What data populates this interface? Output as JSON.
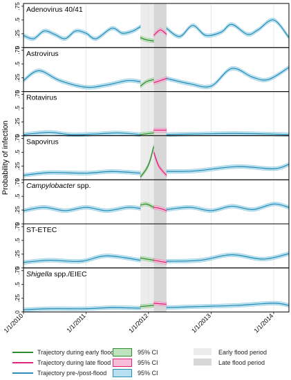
{
  "chart_data": {
    "type": "line",
    "ylabel": "Probability of infection",
    "x_ticks": [
      "1/1/2010",
      "1/1/2011",
      "1/1/2012",
      "1/1/2013",
      "1/1/2014"
    ],
    "y_ticks": [
      "0",
      ".25",
      ".5",
      ".75"
    ],
    "ylim": [
      0,
      0.8
    ],
    "xlim": [
      "2010-01-01",
      "2014-03-31"
    ],
    "grid": true,
    "legend_position": "bottom",
    "periods": {
      "early_flood": [
        "2011-11-15",
        "2012-01-31"
      ],
      "late_flood": [
        "2012-02-01",
        "2012-04-15"
      ]
    },
    "panels": [
      {
        "title": "Adenovirus 40/41",
        "pre_post": [
          {
            "x": "2010-01-01",
            "y": 0.22
          },
          {
            "x": "2010-03-01",
            "y": 0.16
          },
          {
            "x": "2010-05-01",
            "y": 0.3
          },
          {
            "x": "2010-07-01",
            "y": 0.24
          },
          {
            "x": "2010-09-01",
            "y": 0.16
          },
          {
            "x": "2010-11-01",
            "y": 0.3
          },
          {
            "x": "2011-01-01",
            "y": 0.26
          },
          {
            "x": "2011-03-01",
            "y": 0.16
          },
          {
            "x": "2011-06-01",
            "y": 0.35
          },
          {
            "x": "2011-08-01",
            "y": 0.26
          },
          {
            "x": "2011-10-01",
            "y": 0.3
          },
          {
            "x": "2011-11-15",
            "y": 0.38
          },
          {
            "x": "2012-04-15",
            "y": 0.35
          },
          {
            "x": "2012-07-01",
            "y": 0.2
          },
          {
            "x": "2012-09-15",
            "y": 0.4
          },
          {
            "x": "2012-12-01",
            "y": 0.22
          },
          {
            "x": "2013-03-01",
            "y": 0.28
          },
          {
            "x": "2013-05-01",
            "y": 0.42
          },
          {
            "x": "2013-08-01",
            "y": 0.24
          },
          {
            "x": "2013-10-01",
            "y": 0.32
          },
          {
            "x": "2014-01-01",
            "y": 0.5
          },
          {
            "x": "2014-03-31",
            "y": 0.18
          }
        ],
        "early": [
          {
            "x": "2011-11-15",
            "y": 0.18
          },
          {
            "x": "2011-12-20",
            "y": 0.14
          },
          {
            "x": "2012-01-31",
            "y": 0.12
          }
        ],
        "late": [
          {
            "x": "2012-02-01",
            "y": 0.22
          },
          {
            "x": "2012-03-10",
            "y": 0.32
          },
          {
            "x": "2012-04-15",
            "y": 0.24
          }
        ]
      },
      {
        "title": "Astrovirus",
        "pre_post": [
          {
            "x": "2010-01-01",
            "y": 0.2
          },
          {
            "x": "2010-04-01",
            "y": 0.38
          },
          {
            "x": "2010-08-01",
            "y": 0.2
          },
          {
            "x": "2011-01-01",
            "y": 0.08
          },
          {
            "x": "2011-05-01",
            "y": 0.12
          },
          {
            "x": "2011-09-01",
            "y": 0.2
          },
          {
            "x": "2011-11-15",
            "y": 0.18
          },
          {
            "x": "2012-04-15",
            "y": 0.24
          },
          {
            "x": "2012-09-01",
            "y": 0.14
          },
          {
            "x": "2013-01-01",
            "y": 0.1
          },
          {
            "x": "2013-05-01",
            "y": 0.42
          },
          {
            "x": "2013-09-01",
            "y": 0.26
          },
          {
            "x": "2013-12-01",
            "y": 0.22
          },
          {
            "x": "2014-03-31",
            "y": 0.44
          }
        ],
        "early": [
          {
            "x": "2011-11-15",
            "y": 0.1
          },
          {
            "x": "2011-12-20",
            "y": 0.18
          },
          {
            "x": "2012-01-31",
            "y": 0.22
          }
        ],
        "late": [
          {
            "x": "2012-02-01",
            "y": 0.16
          },
          {
            "x": "2012-03-10",
            "y": 0.2
          },
          {
            "x": "2012-04-15",
            "y": 0.24
          }
        ]
      },
      {
        "title": "Rotavirus",
        "pre_post": [
          {
            "x": "2010-01-01",
            "y": 0.02
          },
          {
            "x": "2010-06-01",
            "y": 0.06
          },
          {
            "x": "2010-10-01",
            "y": 0.02
          },
          {
            "x": "2011-03-01",
            "y": 0.03
          },
          {
            "x": "2011-07-01",
            "y": 0.05
          },
          {
            "x": "2011-11-15",
            "y": 0.02
          },
          {
            "x": "2012-04-15",
            "y": 0.02
          },
          {
            "x": "2012-10-01",
            "y": 0.03
          },
          {
            "x": "2013-06-01",
            "y": 0.04
          },
          {
            "x": "2014-03-31",
            "y": 0.02
          }
        ],
        "early": [
          {
            "x": "2011-11-15",
            "y": 0.02
          },
          {
            "x": "2012-01-31",
            "y": 0.05
          }
        ],
        "late": [
          {
            "x": "2012-02-01",
            "y": 0.1
          },
          {
            "x": "2012-04-15",
            "y": 0.1
          }
        ]
      },
      {
        "title": "Sapovirus",
        "pre_post": [
          {
            "x": "2010-01-01",
            "y": 0.08
          },
          {
            "x": "2010-06-01",
            "y": 0.13
          },
          {
            "x": "2011-01-01",
            "y": 0.12
          },
          {
            "x": "2011-06-01",
            "y": 0.15
          },
          {
            "x": "2011-11-15",
            "y": 0.12
          },
          {
            "x": "2012-04-15",
            "y": 0.15
          },
          {
            "x": "2012-10-01",
            "y": 0.16
          },
          {
            "x": "2013-06-01",
            "y": 0.24
          },
          {
            "x": "2014-01-01",
            "y": 0.2
          },
          {
            "x": "2014-03-31",
            "y": 0.28
          }
        ],
        "early": [
          {
            "x": "2011-11-15",
            "y": 0.05
          },
          {
            "x": "2011-12-20",
            "y": 0.2
          },
          {
            "x": "2012-01-10",
            "y": 0.35
          },
          {
            "x": "2012-01-31",
            "y": 0.6
          }
        ],
        "late": [
          {
            "x": "2012-02-01",
            "y": 0.5
          },
          {
            "x": "2012-03-01",
            "y": 0.25
          },
          {
            "x": "2012-04-15",
            "y": 0.08
          }
        ]
      },
      {
        "title": "Campylobacter spp.",
        "title_italic": "Campylobacter",
        "title_rest": " spp.",
        "pre_post": [
          {
            "x": "2010-01-01",
            "y": 0.24
          },
          {
            "x": "2010-05-01",
            "y": 0.3
          },
          {
            "x": "2010-09-01",
            "y": 0.24
          },
          {
            "x": "2011-01-01",
            "y": 0.3
          },
          {
            "x": "2011-05-01",
            "y": 0.24
          },
          {
            "x": "2011-09-01",
            "y": 0.3
          },
          {
            "x": "2011-11-15",
            "y": 0.28
          },
          {
            "x": "2012-04-15",
            "y": 0.26
          },
          {
            "x": "2012-09-01",
            "y": 0.3
          },
          {
            "x": "2013-01-01",
            "y": 0.24
          },
          {
            "x": "2013-05-01",
            "y": 0.32
          },
          {
            "x": "2013-09-01",
            "y": 0.26
          },
          {
            "x": "2014-01-01",
            "y": 0.36
          },
          {
            "x": "2014-03-31",
            "y": 0.3
          }
        ],
        "early": [
          {
            "x": "2011-11-15",
            "y": 0.34
          },
          {
            "x": "2011-12-20",
            "y": 0.36
          },
          {
            "x": "2012-01-31",
            "y": 0.3
          }
        ],
        "late": [
          {
            "x": "2012-02-01",
            "y": 0.3
          },
          {
            "x": "2012-03-10",
            "y": 0.28
          },
          {
            "x": "2012-04-15",
            "y": 0.24
          }
        ]
      },
      {
        "title": "ST-ETEC",
        "pre_post": [
          {
            "x": "2010-01-01",
            "y": 0.1
          },
          {
            "x": "2010-06-01",
            "y": 0.14
          },
          {
            "x": "2010-12-01",
            "y": 0.12
          },
          {
            "x": "2011-05-01",
            "y": 0.22
          },
          {
            "x": "2011-11-15",
            "y": 0.14
          },
          {
            "x": "2012-04-15",
            "y": 0.12
          },
          {
            "x": "2012-11-01",
            "y": 0.14
          },
          {
            "x": "2013-05-01",
            "y": 0.24
          },
          {
            "x": "2013-11-01",
            "y": 0.16
          },
          {
            "x": "2014-03-31",
            "y": 0.26
          }
        ],
        "early": [
          {
            "x": "2011-11-15",
            "y": 0.18
          },
          {
            "x": "2012-01-31",
            "y": 0.14
          }
        ],
        "late": [
          {
            "x": "2012-02-01",
            "y": 0.14
          },
          {
            "x": "2012-04-15",
            "y": 0.1
          }
        ]
      },
      {
        "title": "Shigella spp./EIEC",
        "title_italic": "Shigella",
        "title_rest": " spp./EIEC",
        "pre_post": [
          {
            "x": "2010-01-01",
            "y": 0.04
          },
          {
            "x": "2010-06-01",
            "y": 0.06
          },
          {
            "x": "2011-01-01",
            "y": 0.06
          },
          {
            "x": "2011-06-01",
            "y": 0.08
          },
          {
            "x": "2011-11-15",
            "y": 0.07
          },
          {
            "x": "2012-04-15",
            "y": 0.08
          },
          {
            "x": "2012-11-01",
            "y": 0.1
          },
          {
            "x": "2013-06-01",
            "y": 0.12
          },
          {
            "x": "2014-01-01",
            "y": 0.16
          },
          {
            "x": "2014-03-31",
            "y": 0.12
          }
        ],
        "early": [
          {
            "x": "2011-11-15",
            "y": 0.1
          },
          {
            "x": "2012-01-31",
            "y": 0.12
          }
        ],
        "late": [
          {
            "x": "2012-02-01",
            "y": 0.16
          },
          {
            "x": "2012-04-15",
            "y": 0.14
          }
        ]
      }
    ]
  },
  "legend": {
    "early": "Trajectory during early flood",
    "late": "Trajectory during late flood",
    "prepost": "Trajectory pre-/post-flood",
    "ci": "95% CI",
    "early_period": "Early flood period",
    "late_period": "Late flood period"
  },
  "colors": {
    "early": "#2e8b2e",
    "early_ci": "#bfe3bf",
    "late": "#e0247a",
    "late_ci": "#f6bcd8",
    "prepost": "#2a8fb8",
    "prepost_ci": "#b6e0f0",
    "early_period": "#ececec",
    "late_period": "#d7d7d7"
  }
}
